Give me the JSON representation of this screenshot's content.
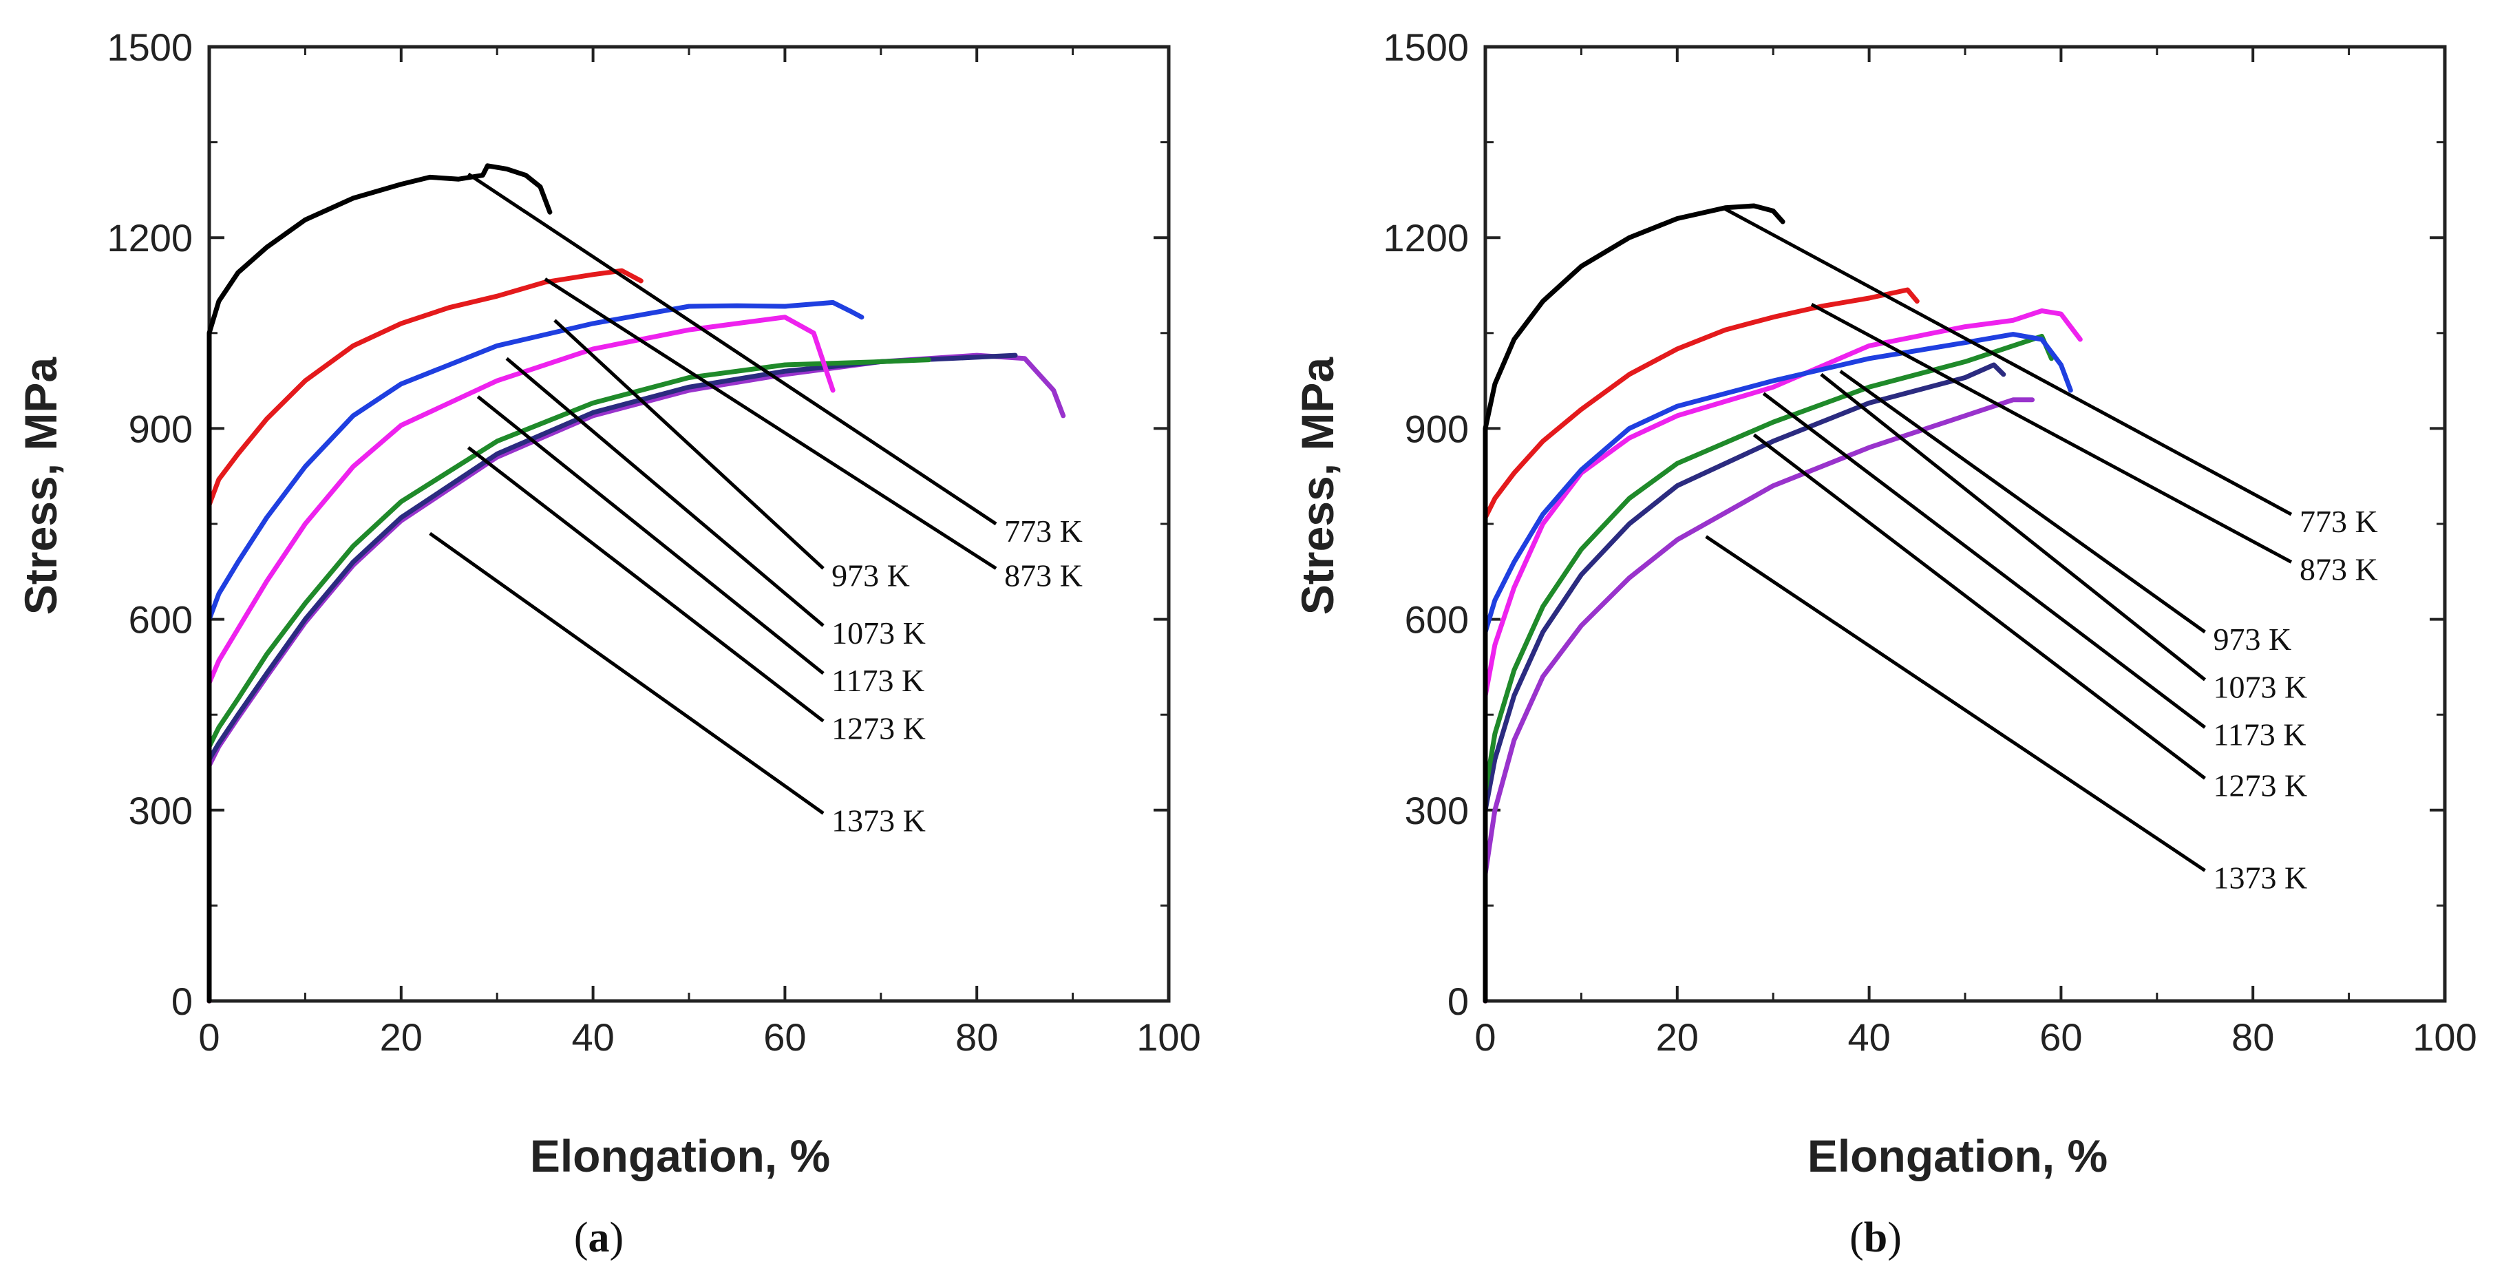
{
  "figure": {
    "panel_captions": [
      {
        "open": "(",
        "letter": "a",
        "close": ")"
      },
      {
        "open": "(",
        "letter": "b",
        "close": ")"
      }
    ]
  },
  "chart_data": [
    {
      "type": "line",
      "panel": "a",
      "title": "",
      "xlabel": "Elongation, %",
      "ylabel": "Stress, MPa",
      "xlim": [
        0,
        100
      ],
      "ylim": [
        0,
        1500
      ],
      "x_ticks": [
        0,
        20,
        40,
        60,
        80,
        100
      ],
      "y_ticks": [
        0,
        300,
        600,
        900,
        1200,
        1500
      ],
      "series": [
        {
          "name": "773 K",
          "color": "#000000",
          "yield": 1050,
          "points": [
            [
              0,
              1050
            ],
            [
              1,
              1100
            ],
            [
              3,
              1145
            ],
            [
              6,
              1185
            ],
            [
              10,
              1228
            ],
            [
              15,
              1262
            ],
            [
              20,
              1284
            ],
            [
              23,
              1295
            ],
            [
              26,
              1292
            ],
            [
              28.5,
              1298
            ],
            [
              29,
              1313
            ],
            [
              31,
              1308
            ],
            [
              33,
              1298
            ],
            [
              34.5,
              1280
            ],
            [
              35.5,
              1240
            ]
          ],
          "callout": {
            "anchor": [
              27,
              1300
            ],
            "label_at": [
              82,
              750
            ],
            "text": "773 K"
          }
        },
        {
          "name": "873 K",
          "color": "#e41a1c",
          "yield": 780,
          "points": [
            [
              0,
              780
            ],
            [
              1,
              820
            ],
            [
              3,
              860
            ],
            [
              6,
              915
            ],
            [
              10,
              975
            ],
            [
              15,
              1030
            ],
            [
              20,
              1065
            ],
            [
              25,
              1090
            ],
            [
              30,
              1108
            ],
            [
              35,
              1130
            ],
            [
              40,
              1142
            ],
            [
              43,
              1148
            ],
            [
              45,
              1132
            ]
          ],
          "callout": {
            "anchor": [
              35,
              1135
            ],
            "label_at": [
              82,
              680
            ],
            "text": "873 K"
          }
        },
        {
          "name": "973 K",
          "color": "#1f3fe0",
          "yield": 600,
          "points": [
            [
              0,
              600
            ],
            [
              1,
              640
            ],
            [
              3,
              690
            ],
            [
              6,
              760
            ],
            [
              10,
              840
            ],
            [
              15,
              920
            ],
            [
              20,
              970
            ],
            [
              30,
              1030
            ],
            [
              40,
              1065
            ],
            [
              50,
              1092
            ],
            [
              55,
              1093
            ],
            [
              60,
              1092
            ],
            [
              65,
              1098
            ],
            [
              67,
              1083
            ],
            [
              68,
              1075
            ]
          ],
          "callout": {
            "anchor": [
              36,
              1070
            ],
            "label_at": [
              64,
              680
            ],
            "text": "973 K"
          }
        },
        {
          "name": "1073 K",
          "color": "#ee22ee",
          "yield": 500,
          "points": [
            [
              0,
              500
            ],
            [
              1,
              535
            ],
            [
              3,
              585
            ],
            [
              6,
              660
            ],
            [
              10,
              750
            ],
            [
              15,
              840
            ],
            [
              20,
              905
            ],
            [
              30,
              975
            ],
            [
              40,
              1025
            ],
            [
              50,
              1055
            ],
            [
              55,
              1065
            ],
            [
              60,
              1075
            ],
            [
              63,
              1050
            ],
            [
              65,
              960
            ]
          ],
          "callout": {
            "anchor": [
              31,
              1010
            ],
            "label_at": [
              64,
              590
            ],
            "text": "1073 K"
          }
        },
        {
          "name": "1173 K",
          "color": "#1f8a2a",
          "yield": 400,
          "points": [
            [
              0,
              400
            ],
            [
              1,
              430
            ],
            [
              3,
              475
            ],
            [
              6,
              545
            ],
            [
              10,
              625
            ],
            [
              15,
              715
            ],
            [
              20,
              785
            ],
            [
              30,
              880
            ],
            [
              40,
              940
            ],
            [
              50,
              980
            ],
            [
              60,
              1000
            ],
            [
              70,
              1005
            ],
            [
              75,
              1008
            ]
          ],
          "callout": {
            "anchor": [
              28,
              950
            ],
            "label_at": [
              64,
              515
            ],
            "text": "1173 K"
          }
        },
        {
          "name": "1273 K",
          "color": "#2b2b80",
          "yield": 380,
          "points": [
            [
              0,
              380
            ],
            [
              1,
              405
            ],
            [
              3,
              450
            ],
            [
              6,
              515
            ],
            [
              10,
              600
            ],
            [
              15,
              690
            ],
            [
              20,
              760
            ],
            [
              30,
              860
            ],
            [
              40,
              925
            ],
            [
              50,
              965
            ],
            [
              60,
              990
            ],
            [
              70,
              1005
            ],
            [
              80,
              1012
            ],
            [
              84,
              1015
            ]
          ],
          "callout": {
            "anchor": [
              27,
              870
            ],
            "label_at": [
              64,
              440
            ],
            "text": "1273 K"
          }
        },
        {
          "name": "1373 K",
          "color": "#9933cc",
          "yield": 370,
          "points": [
            [
              0,
              370
            ],
            [
              1,
              400
            ],
            [
              3,
              445
            ],
            [
              6,
              510
            ],
            [
              10,
              595
            ],
            [
              15,
              685
            ],
            [
              20,
              755
            ],
            [
              30,
              855
            ],
            [
              40,
              920
            ],
            [
              50,
              960
            ],
            [
              60,
              985
            ],
            [
              70,
              1005
            ],
            [
              80,
              1015
            ],
            [
              85,
              1010
            ],
            [
              88,
              960
            ],
            [
              89,
              920
            ]
          ],
          "callout": {
            "anchor": [
              23,
              735
            ],
            "label_at": [
              64,
              295
            ],
            "text": "1373 K"
          }
        }
      ]
    },
    {
      "type": "line",
      "panel": "b",
      "title": "",
      "xlabel": "Elongation, %",
      "ylabel": "Stress, MPa",
      "xlim": [
        0,
        100
      ],
      "ylim": [
        0,
        1500
      ],
      "x_ticks": [
        0,
        20,
        40,
        60,
        80,
        100
      ],
      "y_ticks": [
        0,
        300,
        600,
        900,
        1200,
        1500
      ],
      "series": [
        {
          "name": "773 K",
          "color": "#000000",
          "yield": 900,
          "points": [
            [
              0,
              900
            ],
            [
              1,
              970
            ],
            [
              3,
              1040
            ],
            [
              6,
              1100
            ],
            [
              10,
              1155
            ],
            [
              15,
              1200
            ],
            [
              20,
              1230
            ],
            [
              25,
              1247
            ],
            [
              28,
              1250
            ],
            [
              30,
              1242
            ],
            [
              31,
              1225
            ]
          ],
          "callout": {
            "anchor": [
              25,
              1245
            ],
            "label_at": [
              84,
              765
            ],
            "text": "773 K"
          }
        },
        {
          "name": "873 K",
          "color": "#e41a1c",
          "yield": 760,
          "points": [
            [
              0,
              760
            ],
            [
              1,
              790
            ],
            [
              3,
              830
            ],
            [
              6,
              880
            ],
            [
              10,
              930
            ],
            [
              15,
              985
            ],
            [
              20,
              1025
            ],
            [
              25,
              1055
            ],
            [
              30,
              1075
            ],
            [
              35,
              1092
            ],
            [
              40,
              1105
            ],
            [
              44,
              1118
            ],
            [
              45,
              1100
            ]
          ],
          "callout": {
            "anchor": [
              34,
              1095
            ],
            "label_at": [
              84,
              690
            ],
            "text": "873 K"
          }
        },
        {
          "name": "973 K",
          "color": "#1f3fe0",
          "yield": 580,
          "points": [
            [
              0,
              580
            ],
            [
              1,
              630
            ],
            [
              3,
              690
            ],
            [
              6,
              765
            ],
            [
              10,
              835
            ],
            [
              15,
              900
            ],
            [
              20,
              935
            ],
            [
              30,
              975
            ],
            [
              40,
              1010
            ],
            [
              50,
              1035
            ],
            [
              55,
              1048
            ],
            [
              58,
              1040
            ],
            [
              60,
              1000
            ],
            [
              61,
              960
            ]
          ],
          "callout": {
            "anchor": [
              37,
              990
            ],
            "label_at": [
              75,
              580
            ],
            "text": "973 K"
          }
        },
        {
          "name": "1073 K",
          "color": "#ee22ee",
          "yield": 480,
          "points": [
            [
              0,
              480
            ],
            [
              1,
              560
            ],
            [
              3,
              650
            ],
            [
              6,
              750
            ],
            [
              10,
              830
            ],
            [
              15,
              885
            ],
            [
              20,
              920
            ],
            [
              30,
              965
            ],
            [
              40,
              1030
            ],
            [
              50,
              1060
            ],
            [
              55,
              1070
            ],
            [
              58,
              1085
            ],
            [
              60,
              1080
            ],
            [
              62,
              1040
            ]
          ],
          "callout": {
            "anchor": [
              35,
              985
            ],
            "label_at": [
              75,
              505
            ],
            "text": "1073 K"
          }
        },
        {
          "name": "1173 K",
          "color": "#1f8a2a",
          "yield": 330,
          "points": [
            [
              0,
              330
            ],
            [
              1,
              420
            ],
            [
              3,
              520
            ],
            [
              6,
              620
            ],
            [
              10,
              710
            ],
            [
              15,
              790
            ],
            [
              20,
              845
            ],
            [
              30,
              910
            ],
            [
              40,
              965
            ],
            [
              50,
              1005
            ],
            [
              55,
              1030
            ],
            [
              58,
              1045
            ],
            [
              59,
              1010
            ]
          ],
          "callout": {
            "anchor": [
              29,
              955
            ],
            "label_at": [
              75,
              430
            ],
            "text": "1173 K"
          }
        },
        {
          "name": "1273 K",
          "color": "#2b2b80",
          "yield": 300,
          "points": [
            [
              0,
              300
            ],
            [
              1,
              380
            ],
            [
              3,
              480
            ],
            [
              6,
              580
            ],
            [
              10,
              670
            ],
            [
              15,
              750
            ],
            [
              20,
              810
            ],
            [
              30,
              880
            ],
            [
              40,
              940
            ],
            [
              50,
              980
            ],
            [
              53,
              1000
            ],
            [
              54,
              985
            ]
          ],
          "callout": {
            "anchor": [
              28,
              890
            ],
            "label_at": [
              75,
              350
            ],
            "text": "1273 K"
          }
        },
        {
          "name": "1373 K",
          "color": "#9933cc",
          "yield": 200,
          "points": [
            [
              0,
              200
            ],
            [
              1,
              300
            ],
            [
              3,
              410
            ],
            [
              6,
              510
            ],
            [
              10,
              590
            ],
            [
              15,
              665
            ],
            [
              20,
              725
            ],
            [
              30,
              810
            ],
            [
              40,
              870
            ],
            [
              50,
              920
            ],
            [
              55,
              945
            ],
            [
              57,
              945
            ]
          ],
          "callout": {
            "anchor": [
              23,
              730
            ],
            "label_at": [
              75,
              205
            ],
            "text": "1373 K"
          }
        }
      ]
    }
  ]
}
